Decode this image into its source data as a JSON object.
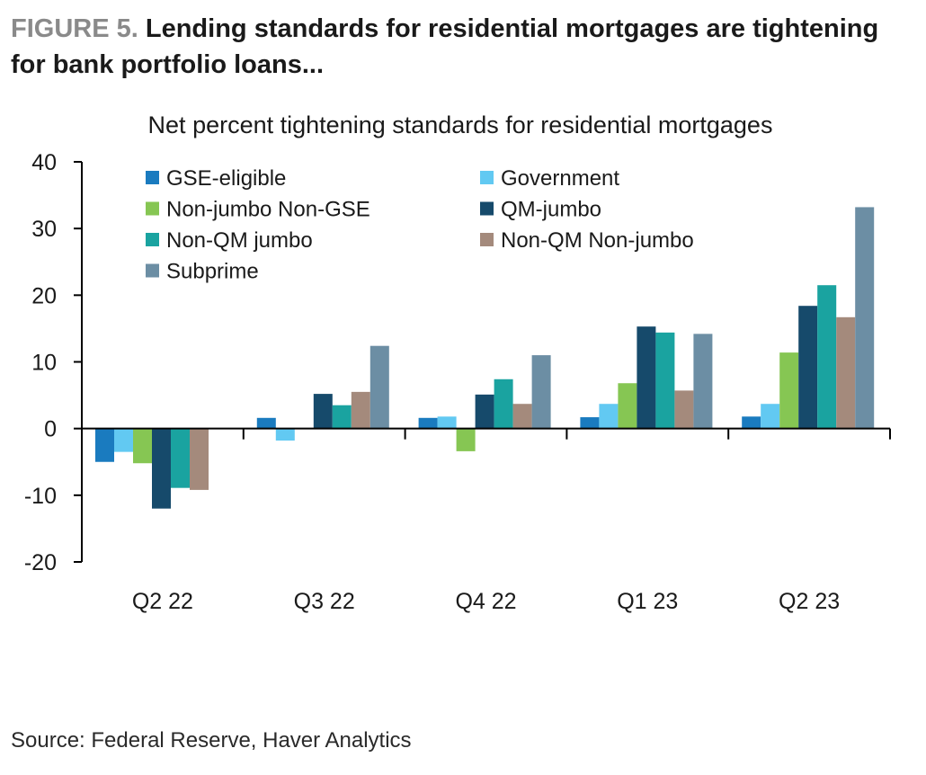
{
  "figure": {
    "label": "FIGURE 5.",
    "title": "Lending standards for residential mortgages are tightening for bank portfolio loans...",
    "source": "Source: Federal Reserve, Haver Analytics"
  },
  "chart_data": {
    "type": "bar",
    "title": "Net percent tightening standards for residential mortgages",
    "xlabel": "",
    "ylabel": "",
    "ylim": [
      -20,
      40
    ],
    "yticks": [
      -20,
      -10,
      0,
      10,
      20,
      30,
      40
    ],
    "categories": [
      "Q2 22",
      "Q3 22",
      "Q4 22",
      "Q1 23",
      "Q2 23"
    ],
    "legend_position": "top-left",
    "series": [
      {
        "name": "GSE-eligible",
        "color": "#1a7bbf",
        "values": [
          -5,
          1.6,
          1.6,
          1.7,
          1.8
        ]
      },
      {
        "name": "Government",
        "color": "#62c9f2",
        "values": [
          -3.5,
          -1.8,
          1.8,
          3.7,
          3.7
        ]
      },
      {
        "name": "Non-jumbo Non-GSE",
        "color": "#86c653",
        "values": [
          -5.2,
          0,
          -3.4,
          6.8,
          11.4
        ]
      },
      {
        "name": "QM-jumbo",
        "color": "#164a6b",
        "values": [
          -12,
          5.2,
          5.1,
          15.3,
          18.4
        ]
      },
      {
        "name": "Non-QM jumbo",
        "color": "#1aa3a0",
        "values": [
          -8.9,
          3.5,
          7.4,
          14.4,
          21.5
        ]
      },
      {
        "name": "Non-QM Non-jumbo",
        "color": "#a48a7c",
        "values": [
          -9.2,
          5.5,
          3.7,
          5.7,
          16.7
        ]
      },
      {
        "name": "Subprime",
        "color": "#6c8ea4",
        "values": [
          0,
          12.4,
          11,
          14.2,
          33.2
        ]
      }
    ]
  }
}
